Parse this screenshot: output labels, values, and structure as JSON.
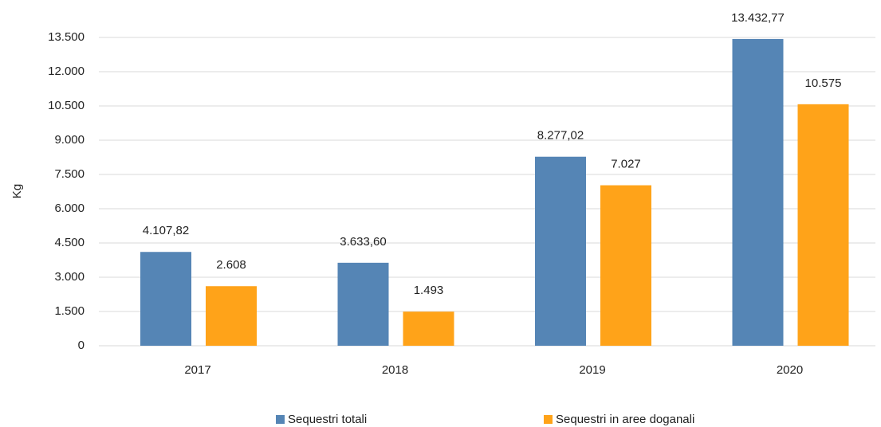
{
  "chart_data": {
    "type": "bar",
    "y_label": "Kg",
    "categories": [
      "2017",
      "2018",
      "2019",
      "2020"
    ],
    "series": [
      {
        "name": "Sequestri totali",
        "color": "#5585b5",
        "values": [
          4107.82,
          3633.6,
          8277.02,
          13432.77
        ],
        "value_labels": [
          "4.107,82",
          "3.633,60",
          "8.277,02",
          "13.432,77"
        ]
      },
      {
        "name": "Sequestri in aree doganali",
        "color": "#ffa319",
        "values": [
          2608,
          1493,
          7027,
          10575
        ],
        "value_labels": [
          "2.608",
          "1.493",
          "7.027",
          "10.575"
        ]
      }
    ],
    "ylim": [
      0,
      13500
    ],
    "yticks": [
      0,
      {
        "value": 1500,
        "label": "1.500"
      },
      {
        "value": 3000,
        "label": "3.000"
      },
      {
        "value": 4500,
        "label": "4.500"
      },
      {
        "value": 6000,
        "label": "6.000"
      },
      {
        "value": 7500,
        "label": "7.500"
      },
      {
        "value": 9000,
        "label": "9.000"
      },
      {
        "value": 10500,
        "label": "10.500"
      },
      {
        "value": 12000,
        "label": "12.000"
      },
      {
        "value": 13500,
        "label": "13.500"
      }
    ],
    "grid": true,
    "legend": "bottom"
  }
}
